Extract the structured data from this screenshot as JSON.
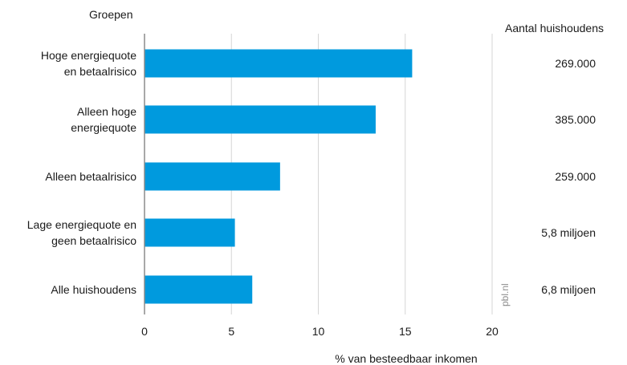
{
  "chart_data": {
    "type": "bar",
    "orientation": "horizontal",
    "categories": [
      [
        "Hoge energiequote",
        "en betaalrisico"
      ],
      [
        "Alleen hoge",
        "energiequote"
      ],
      [
        "Alleen betaalrisico"
      ],
      [
        "Lage energiequote en",
        "geen betaalrisico"
      ],
      [
        "Alle huishoudens"
      ]
    ],
    "values": [
      15.4,
      13.3,
      7.8,
      5.2,
      6.2
    ],
    "households": [
      "269.000",
      "385.000",
      "259.000",
      "5,8 miljoen",
      "6,8 miljoen"
    ],
    "xlabel": "% van besteedbaar inkomen",
    "category_header": "Groepen",
    "households_header": "Aantal huishoudens",
    "xlim": [
      0,
      20
    ],
    "xticks": [
      0,
      5,
      10,
      15,
      20
    ],
    "grid": true,
    "bar_color": "#009ADE",
    "source": "pbl.nl"
  }
}
